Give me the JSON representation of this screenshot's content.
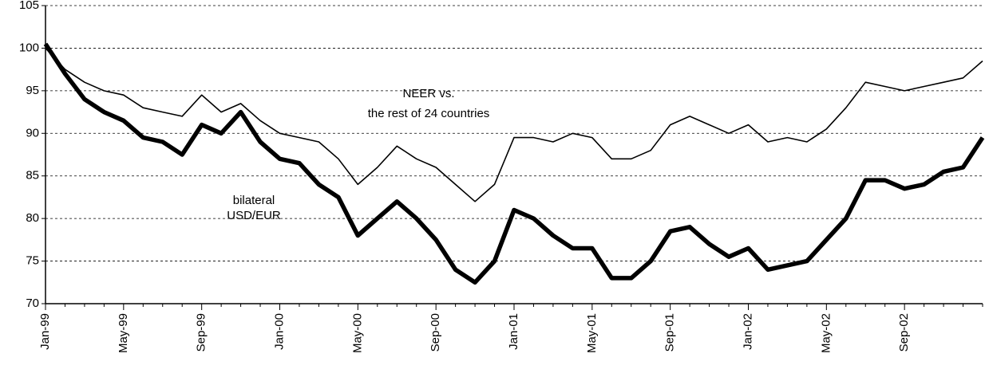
{
  "chart_data": {
    "type": "line",
    "categories": [
      "Jan-99",
      null,
      null,
      null,
      "May-99",
      null,
      null,
      null,
      "Sep-99",
      null,
      null,
      null,
      "Jan-00",
      null,
      null,
      null,
      "May-00",
      null,
      null,
      null,
      "Sep-00",
      null,
      null,
      null,
      "Jan-01",
      null,
      null,
      null,
      "May-01",
      null,
      null,
      null,
      "Sep-01",
      null,
      null,
      null,
      "Jan-02",
      null,
      null,
      null,
      "May-02",
      null,
      null,
      null,
      "Sep-02",
      null,
      null,
      null,
      null
    ],
    "series": [
      {
        "color": "#000000",
        "values": [
          100,
          97.5,
          96,
          95,
          94.5,
          93,
          92.5,
          92,
          94.5,
          92.5,
          93.5,
          91.5,
          90,
          89.5,
          89,
          87,
          84,
          86,
          88.5,
          87,
          86,
          84,
          82,
          84,
          89.5,
          89.5,
          89,
          90,
          89.5,
          87,
          87,
          88,
          91,
          92,
          91,
          90,
          91,
          89,
          89.5,
          89,
          90.5,
          93,
          96,
          95.5,
          95,
          95.5,
          96,
          96.5,
          98.5
        ]
      },
      {
        "color": "#000000",
        "values": [
          100.5,
          97,
          94,
          92.5,
          91.5,
          89.5,
          89,
          87.5,
          91,
          90,
          92.5,
          89,
          87,
          86.5,
          84,
          82.5,
          78,
          80,
          82,
          80,
          77.5,
          74,
          72.5,
          75,
          81,
          80,
          78,
          76.5,
          76.5,
          73,
          73,
          75,
          78.5,
          79,
          77,
          75.5,
          76.5,
          74,
          74.5,
          75,
          77.5,
          80,
          84.5,
          84.5,
          83.5,
          84,
          85.5,
          86,
          89.5
        ]
      }
    ],
    "annotations": [
      "NEER vs.",
      "the rest of 24 countries",
      "bilateral",
      "USD/EUR"
    ],
    "ylim": [
      70,
      105
    ],
    "yticks": [
      70,
      75,
      80,
      85,
      90,
      95,
      100,
      105
    ],
    "grid": true
  }
}
